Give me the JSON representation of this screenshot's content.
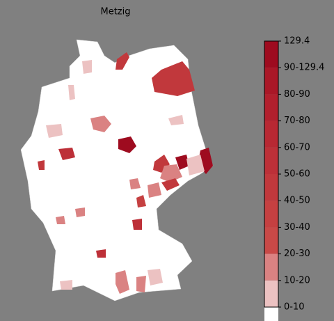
{
  "title": "Metzig",
  "colorbar": {
    "labels": [
      "129.4",
      "90-129.4",
      "80-90",
      "70-80",
      "60-70",
      "50-60",
      "40-50",
      "30-40",
      "20-30",
      "10-20",
      "0-10"
    ],
    "colors": [
      "#9e0b1f",
      "#aa1727",
      "#b21f2d",
      "#b82833",
      "#bd3038",
      "#c1383c",
      "#c54041",
      "#c94947",
      "#da8282",
      "#ecc2c2",
      "#ffffff"
    ]
  }
}
